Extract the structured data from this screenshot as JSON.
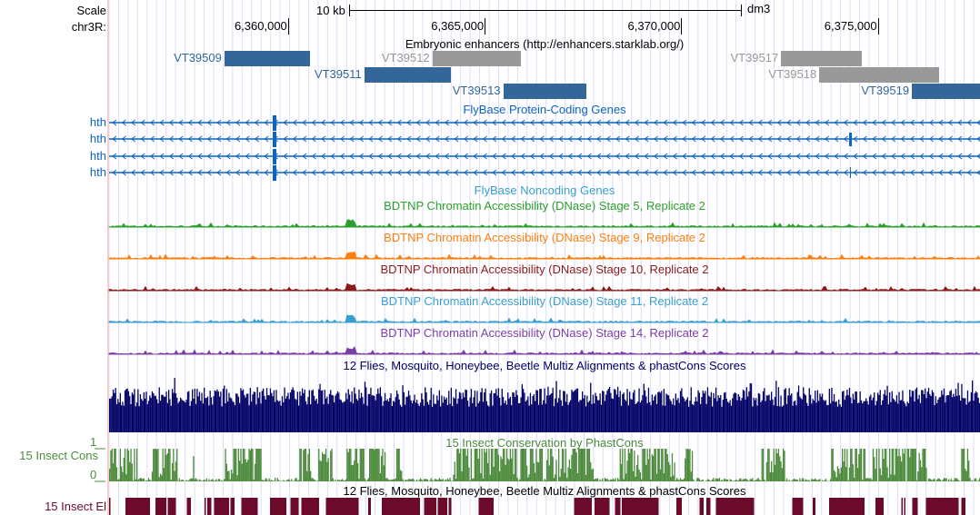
{
  "view": {
    "chrom": "chr3R",
    "start": 6355450,
    "end": 6377598,
    "assembly": "dm3"
  },
  "header": {
    "scale_label": "Scale",
    "scale_bar_label": "10 kb",
    "chrom_label": "chr3R:",
    "assembly": "dm3",
    "ticks": [
      {
        "pos": 6360000,
        "label": "6,360,000"
      },
      {
        "pos": 6365000,
        "label": "6,365,000"
      },
      {
        "pos": 6370000,
        "label": "6,370,000"
      },
      {
        "pos": 6375000,
        "label": "6,375,000"
      }
    ]
  },
  "enhancers": {
    "title": "Embryonic enhancers (http://enhancers.starklab.org/)",
    "items": [
      {
        "name": "VT39509",
        "start": 6358383,
        "end": 6360554,
        "row": 0,
        "color": "#336699"
      },
      {
        "name": "VT39512",
        "start": 6363672,
        "end": 6365912,
        "row": 0,
        "color": "#999999"
      },
      {
        "name": "VT39511",
        "start": 6361940,
        "end": 6364134,
        "row": 1,
        "color": "#336699"
      },
      {
        "name": "VT39513",
        "start": 6365473,
        "end": 6367598,
        "row": 2,
        "color": "#336699"
      },
      {
        "name": "VT39517",
        "start": 6372540,
        "end": 6374596,
        "row": 0,
        "color": "#999999"
      },
      {
        "name": "VT39518",
        "start": 6373510,
        "end": 6376559,
        "row": 1,
        "color": "#999999"
      },
      {
        "name": "VT39519",
        "start": 6375866,
        "end": 6377598,
        "row": 2,
        "color": "#336699"
      }
    ]
  },
  "genes": {
    "title": "FlyBase Protein-Coding Genes",
    "color": "#0c64c0",
    "strand": "-",
    "items": [
      {
        "name": "hth"
      },
      {
        "name": "hth"
      },
      {
        "name": "hth"
      },
      {
        "name": "hth"
      }
    ]
  },
  "noncoding": {
    "title": "FlyBase Noncoding Genes"
  },
  "dnase": [
    {
      "title": "BDTNP Chromatin Accessibility (DNase) Stage 5, Replicate 2",
      "color": "#2ca02c"
    },
    {
      "title": "BDTNP Chromatin Accessibility (DNase) Stage 9, Replicate 2",
      "color": "#ff7f0e"
    },
    {
      "title": "BDTNP Chromatin Accessibility (DNase) Stage 10, Replicate 2",
      "color": "#8b1a1a"
    },
    {
      "title": "BDTNP Chromatin Accessibility (DNase) Stage 11, Replicate 2",
      "color": "#3a9fd0"
    },
    {
      "title": "BDTNP Chromatin Accessibility (DNase) Stage 14, Replicate 2",
      "color": "#7b3fa8"
    }
  ],
  "multiz": {
    "title": "12 Flies, Mosquito, Honeybee, Beetle Multiz Alignments & phastCons Scores",
    "color": "#000066"
  },
  "cons": {
    "title": "15 Insect Conservation by PhastCons",
    "side_label": "15 Insect Cons",
    "ymax": "1",
    "ymin": "0",
    "color": "#4b8b3b"
  },
  "elements": {
    "title": "12 Flies, Mosquito, Honeybee, Beetle Multiz Alignments & phastCons Scores",
    "side_label": "15 Insect El",
    "color": "#6b0a2a"
  }
}
